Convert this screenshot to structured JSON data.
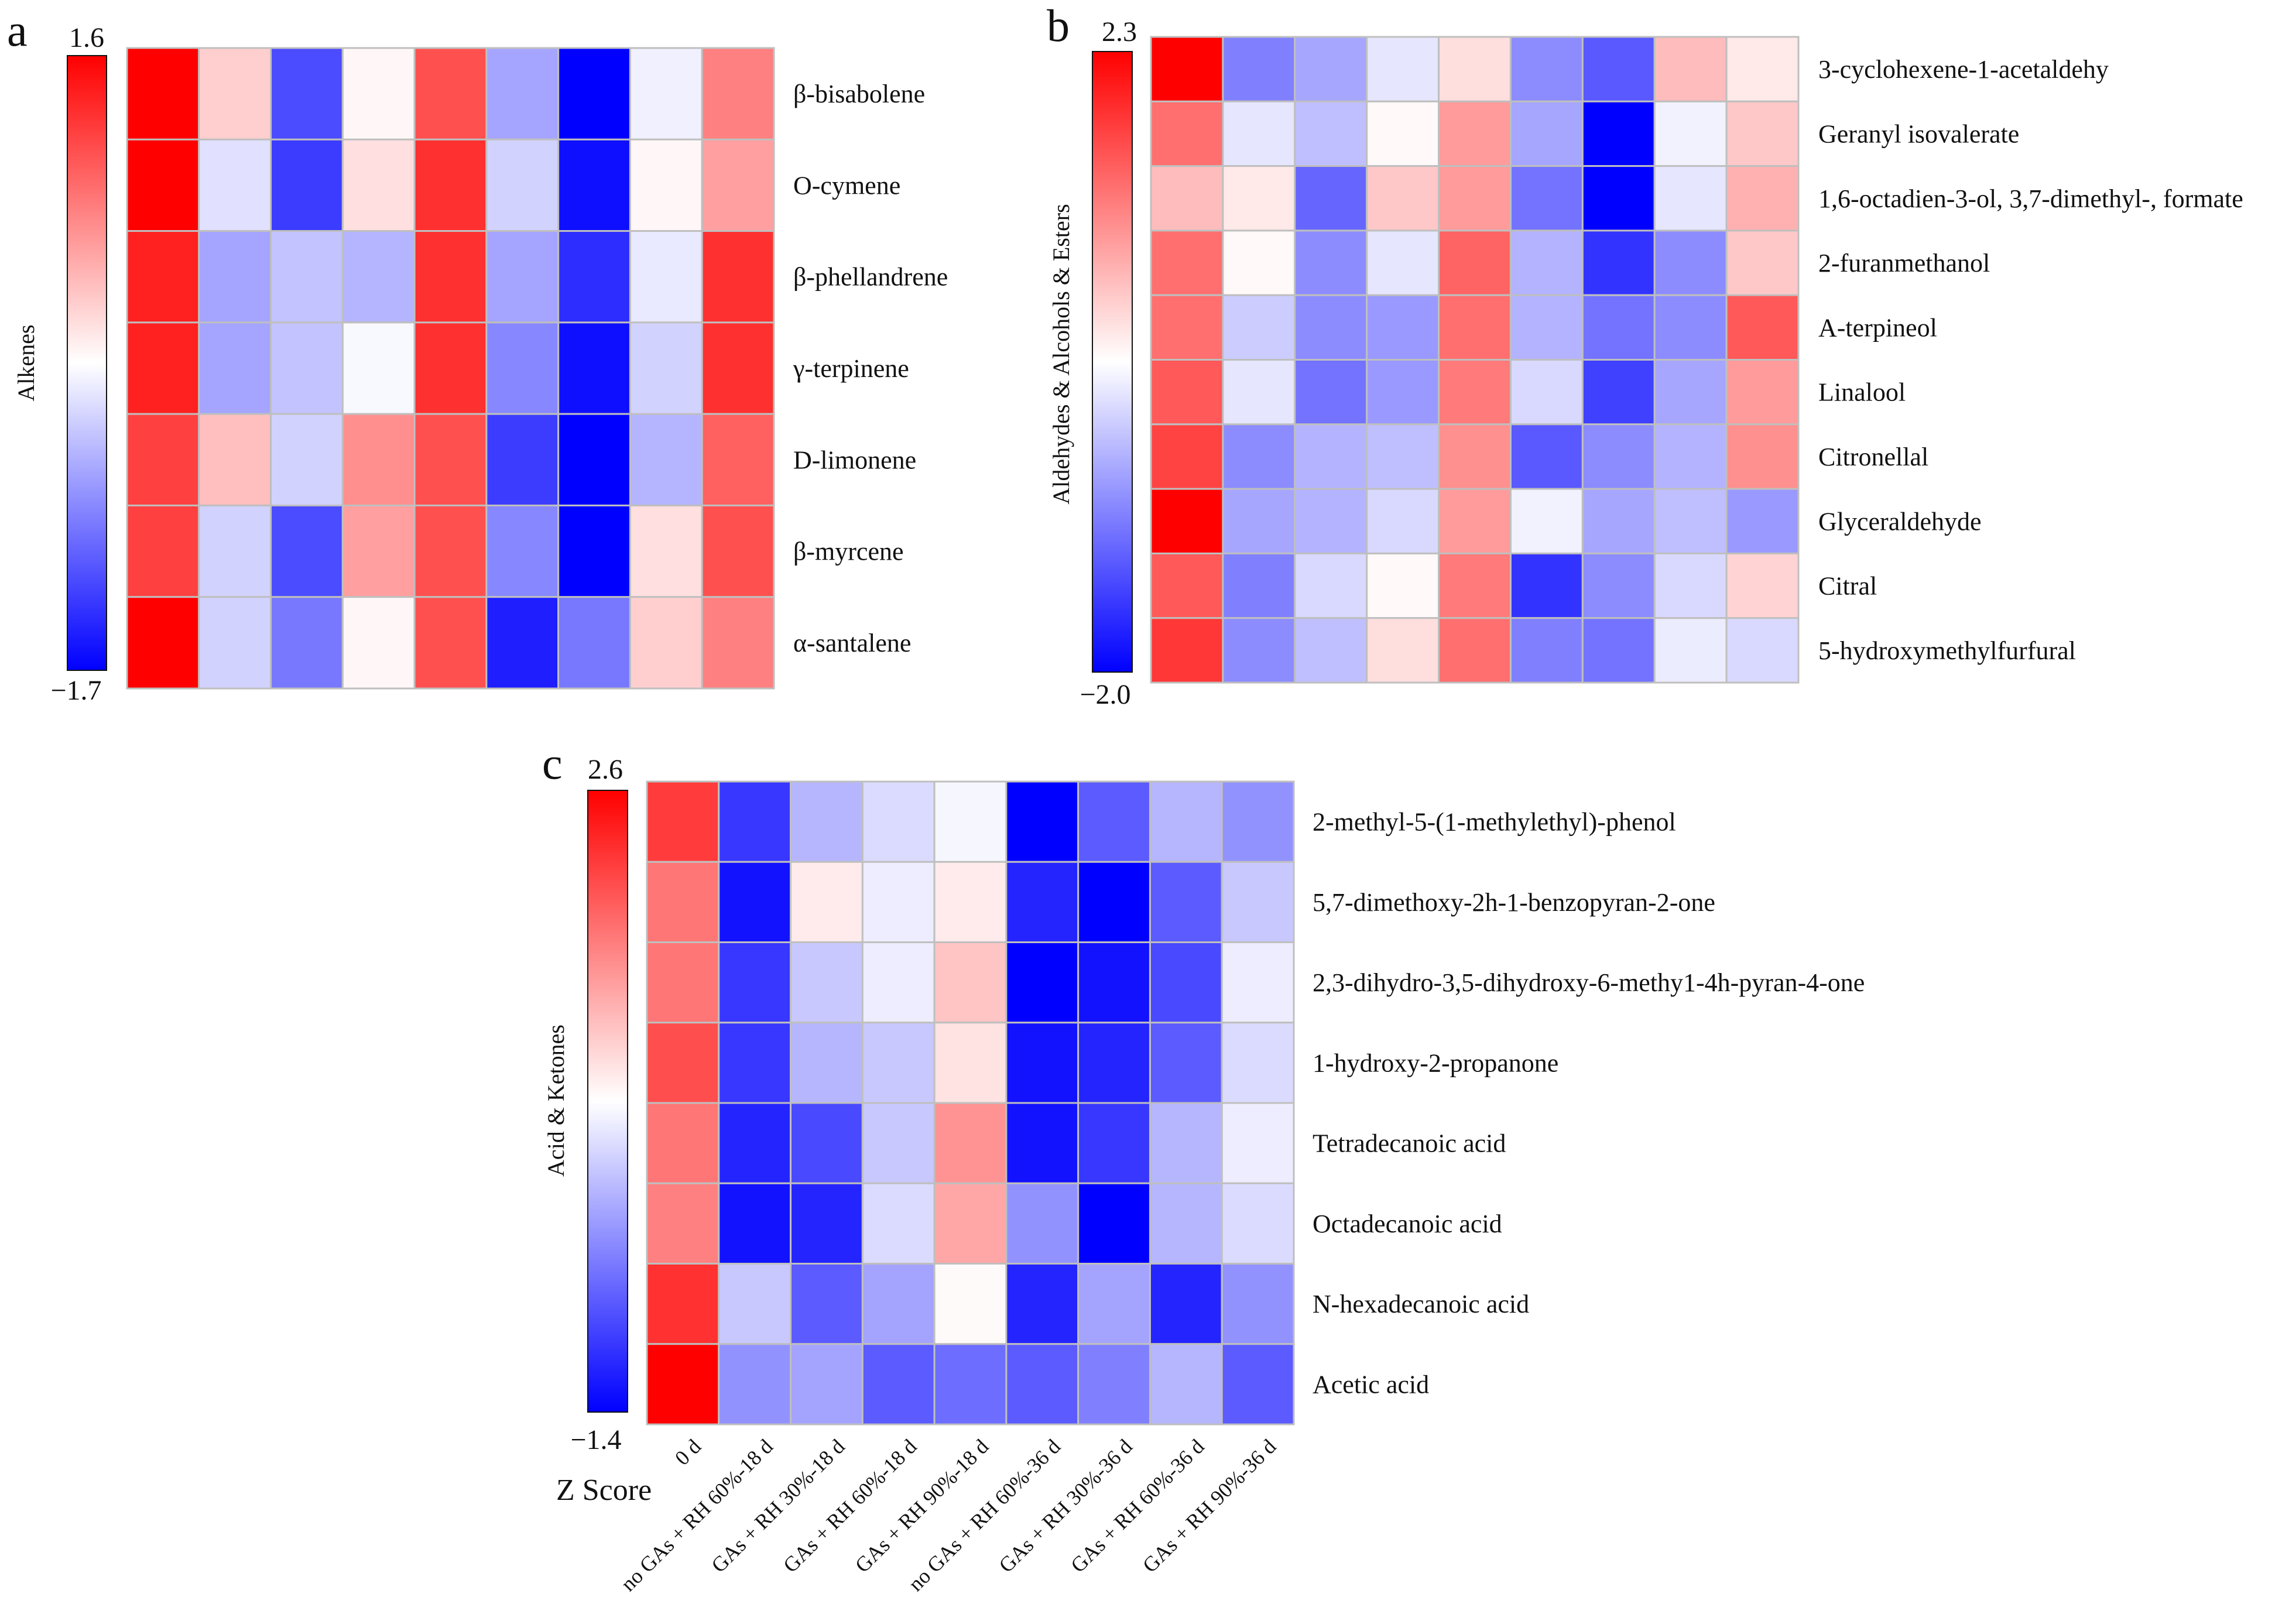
{
  "legend_title": "Z Score",
  "columns": [
    "0 d",
    "no GAs + RH 60%-18 d",
    "GAs + RH 30%-18 d",
    "GAs + RH 60%-18 d",
    "GAs + RH 90%-18 d",
    "no GAs + RH 60%-36 d",
    "GAs + RH 30%-36 d",
    "GAs + RH 60%-36 d",
    "GAs + RH 90%-36 d"
  ],
  "colors": {
    "high": "#ff0000",
    "mid": "#ffffff",
    "low": "#0000ff",
    "grid": "#bfbfbf"
  },
  "chart_data": [
    {
      "type": "heatmap",
      "panel": "a",
      "ylabel": "Alkenes",
      "zmax": 1.6,
      "zmin": -1.7,
      "zmax_label": "1.6",
      "zmin_label": "−1.7",
      "rows": [
        "β-bisabolene",
        "O-cymene",
        "β-phellandrene",
        "γ-terpinene",
        "D-limonene",
        "β-myrcene",
        "α-santalene"
      ],
      "values": [
        [
          1.6,
          0.3,
          -1.2,
          0.05,
          1.1,
          -0.6,
          -1.7,
          -0.1,
          0.8
        ],
        [
          1.6,
          -0.2,
          -1.3,
          0.2,
          1.3,
          -0.3,
          -1.6,
          0.05,
          0.6
        ],
        [
          1.4,
          -0.6,
          -0.4,
          -0.5,
          1.3,
          -0.6,
          -1.4,
          -0.15,
          1.3
        ],
        [
          1.4,
          -0.6,
          -0.4,
          -0.05,
          1.3,
          -0.8,
          -1.6,
          -0.3,
          1.3
        ],
        [
          1.2,
          0.4,
          -0.3,
          0.7,
          1.1,
          -1.3,
          -1.7,
          -0.5,
          1.0
        ],
        [
          1.2,
          -0.3,
          -1.2,
          0.6,
          1.1,
          -0.8,
          -1.7,
          0.2,
          1.1
        ],
        [
          1.6,
          -0.3,
          -0.9,
          0.05,
          1.1,
          -1.5,
          -0.9,
          0.3,
          0.8
        ]
      ]
    },
    {
      "type": "heatmap",
      "panel": "b",
      "ylabel": "Aldehydes & Alcohols & Esters",
      "zmax": 2.3,
      "zmin": -2.0,
      "zmax_label": "2.3",
      "zmin_label": "−2.0",
      "rows": [
        "3-cyclohexene-1-acetaldehy",
        "Geranyl isovalerate",
        "1,6-octadien-3-ol, 3,7-dimethyl-, formate",
        "2-furanmethanol",
        "A-terpineol",
        "Linalool",
        "Citronellal",
        "Glyceraldehyde",
        "Citral",
        "5-hydroxymethylfurfural"
      ],
      "values": [
        [
          2.3,
          -1.0,
          -0.7,
          -0.2,
          0.3,
          -0.9,
          -1.3,
          0.6,
          0.2
        ],
        [
          1.3,
          -0.2,
          -0.5,
          0.05,
          0.9,
          -0.7,
          -2.0,
          -0.1,
          0.5
        ],
        [
          0.6,
          0.2,
          -1.2,
          0.5,
          0.9,
          -1.1,
          -2.0,
          -0.2,
          0.7
        ],
        [
          1.3,
          0.05,
          -0.9,
          -0.2,
          1.4,
          -0.6,
          -1.6,
          -0.9,
          0.5
        ],
        [
          1.3,
          -0.4,
          -0.9,
          -0.8,
          1.3,
          -0.6,
          -1.1,
          -0.9,
          1.5
        ],
        [
          1.5,
          -0.2,
          -1.1,
          -0.8,
          1.2,
          -0.3,
          -1.5,
          -0.7,
          0.9
        ],
        [
          1.7,
          -0.9,
          -0.6,
          -0.5,
          1.0,
          -1.3,
          -0.9,
          -0.6,
          1.0
        ],
        [
          2.3,
          -0.7,
          -0.6,
          -0.3,
          0.9,
          -0.1,
          -0.7,
          -0.5,
          -0.8
        ],
        [
          1.5,
          -1.0,
          -0.3,
          0.05,
          1.2,
          -1.6,
          -0.9,
          -0.3,
          0.4
        ],
        [
          1.8,
          -0.9,
          -0.5,
          0.3,
          1.3,
          -1.0,
          -1.1,
          -0.15,
          -0.3
        ]
      ]
    },
    {
      "type": "heatmap",
      "panel": "c",
      "ylabel": "Acid & Ketones",
      "zmax": 2.6,
      "zmin": -1.4,
      "zmax_label": "2.6",
      "zmin_label": "−1.4",
      "rows": [
        "2-methyl-5-(1-methylethyl)-phenol",
        "5,7-dimethoxy-2h-1-benzopyran-2-one",
        "2,3-dihydro-3,5-dihydroxy-6-methy1-4h-pyran-4-one",
        "1-hydroxy-2-propanone",
        "Tetradecanoic acid",
        "Octadecanoic acid",
        "N-hexadecanoic acid",
        "Acetic acid"
      ],
      "values": [
        [
          2.0,
          -1.1,
          -0.4,
          -0.2,
          -0.05,
          -1.4,
          -0.9,
          -0.4,
          -0.6
        ],
        [
          1.4,
          -1.3,
          0.2,
          -0.1,
          0.2,
          -1.2,
          -1.4,
          -0.9,
          -0.3
        ],
        [
          1.4,
          -1.1,
          -0.3,
          -0.1,
          0.6,
          -1.4,
          -1.3,
          -1.0,
          -0.1
        ],
        [
          1.8,
          -1.1,
          -0.4,
          -0.3,
          0.3,
          -1.3,
          -1.2,
          -0.9,
          -0.2
        ],
        [
          1.4,
          -1.2,
          -1.0,
          -0.3,
          1.1,
          -1.3,
          -1.1,
          -0.4,
          -0.1
        ],
        [
          1.3,
          -1.3,
          -1.2,
          -0.2,
          0.9,
          -0.6,
          -1.4,
          -0.4,
          -0.2
        ],
        [
          2.1,
          -0.3,
          -0.9,
          -0.5,
          0.05,
          -1.2,
          -0.5,
          -1.2,
          -0.6
        ],
        [
          2.6,
          -0.6,
          -0.5,
          -0.9,
          -0.8,
          -0.9,
          -0.7,
          -0.4,
          -0.9
        ]
      ]
    }
  ]
}
